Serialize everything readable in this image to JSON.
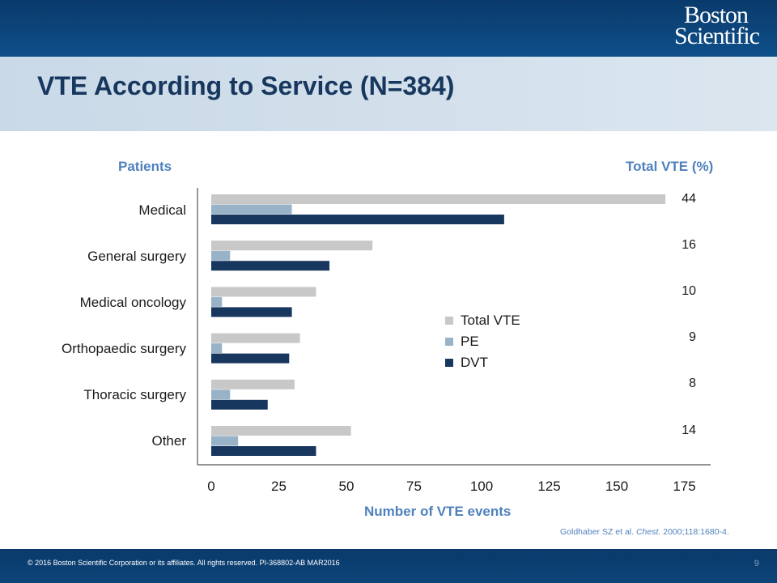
{
  "slide": {
    "title": "VTE According to Service (N=384)",
    "logo_line1": "Boston",
    "logo_line2": "Scientific",
    "left_header": "Patients",
    "right_header": "Total VTE  (%)",
    "citation_prefix": "Goldhaber SZ et al. ",
    "citation_journal": "Chest.",
    "citation_suffix": " 2000;118:1680-4.",
    "footer": "© 2016 Boston Scientific Corporation or its affiliates. All rights reserved. PI-368802-AB MAR2016",
    "page_number": "9"
  },
  "colors": {
    "total_vte": "#c8c8c8",
    "pe": "#98b3c8",
    "dvt": "#17375e"
  },
  "chart_data": {
    "type": "bar",
    "orientation": "horizontal",
    "categories": [
      "Medical",
      "General surgery",
      "Medical oncology",
      "Orthopaedic surgery",
      "Thoracic surgery",
      "Other"
    ],
    "series": [
      {
        "name": "Total VTE",
        "values": [
          169,
          60,
          39,
          33,
          31,
          52
        ]
      },
      {
        "name": "PE",
        "values": [
          30,
          7,
          4,
          4,
          7,
          10
        ]
      },
      {
        "name": "DVT",
        "values": [
          109,
          44,
          30,
          29,
          21,
          39
        ]
      }
    ],
    "percent_labels": [
      "44",
      "16",
      "10",
      "9",
      "8",
      "14"
    ],
    "xlabel": "Number of VTE events",
    "xlim": [
      0,
      175
    ],
    "xticks": [
      "0",
      "25",
      "50",
      "75",
      "100",
      "125",
      "150",
      "175"
    ],
    "legend_position": "center-right"
  }
}
